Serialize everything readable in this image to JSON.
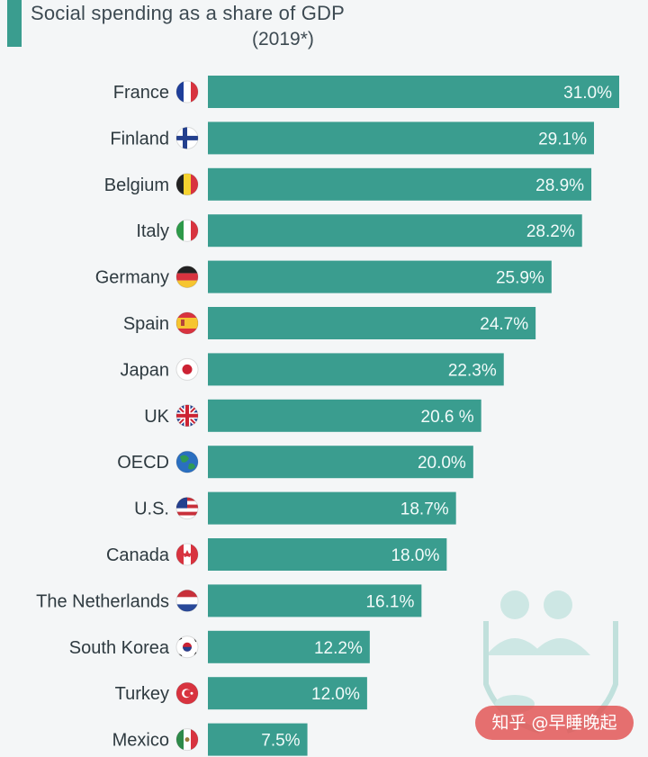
{
  "chart_data": {
    "type": "bar",
    "orientation": "horizontal",
    "title": "Social spending as a share of GDP",
    "subtitle": "(2019*)",
    "unit": "%",
    "xlim": [
      0,
      31
    ],
    "grid": false,
    "bar_color": "#3a9d8f",
    "categories": [
      "France",
      "Finland",
      "Belgium",
      "Italy",
      "Germany",
      "Spain",
      "Japan",
      "UK",
      "OECD",
      "U.S.",
      "Canada",
      "The Netherlands",
      "South Korea",
      "Turkey",
      "Mexico"
    ],
    "values": [
      31.0,
      29.1,
      28.9,
      28.2,
      25.9,
      24.7,
      22.3,
      20.6,
      20.0,
      18.7,
      18.0,
      16.1,
      12.2,
      12.0,
      7.5
    ],
    "value_labels": [
      "31.0%",
      "29.1%",
      "28.9%",
      "28.2%",
      "25.9%",
      "24.7%",
      "22.3%",
      "20.6 %",
      "20.0%",
      "18.7%",
      "18.0%",
      "16.1%",
      "12.2%",
      "12.0%",
      "7.5%"
    ],
    "flags": [
      "france-flag-icon",
      "finland-flag-icon",
      "belgium-flag-icon",
      "italy-flag-icon",
      "germany-flag-icon",
      "spain-flag-icon",
      "japan-flag-icon",
      "uk-flag-icon",
      "globe-icon",
      "us-flag-icon",
      "canada-flag-icon",
      "netherlands-flag-icon",
      "south-korea-flag-icon",
      "turkey-flag-icon",
      "mexico-flag-icon"
    ]
  },
  "watermark": {
    "text": "知乎 @早睡晚起"
  }
}
